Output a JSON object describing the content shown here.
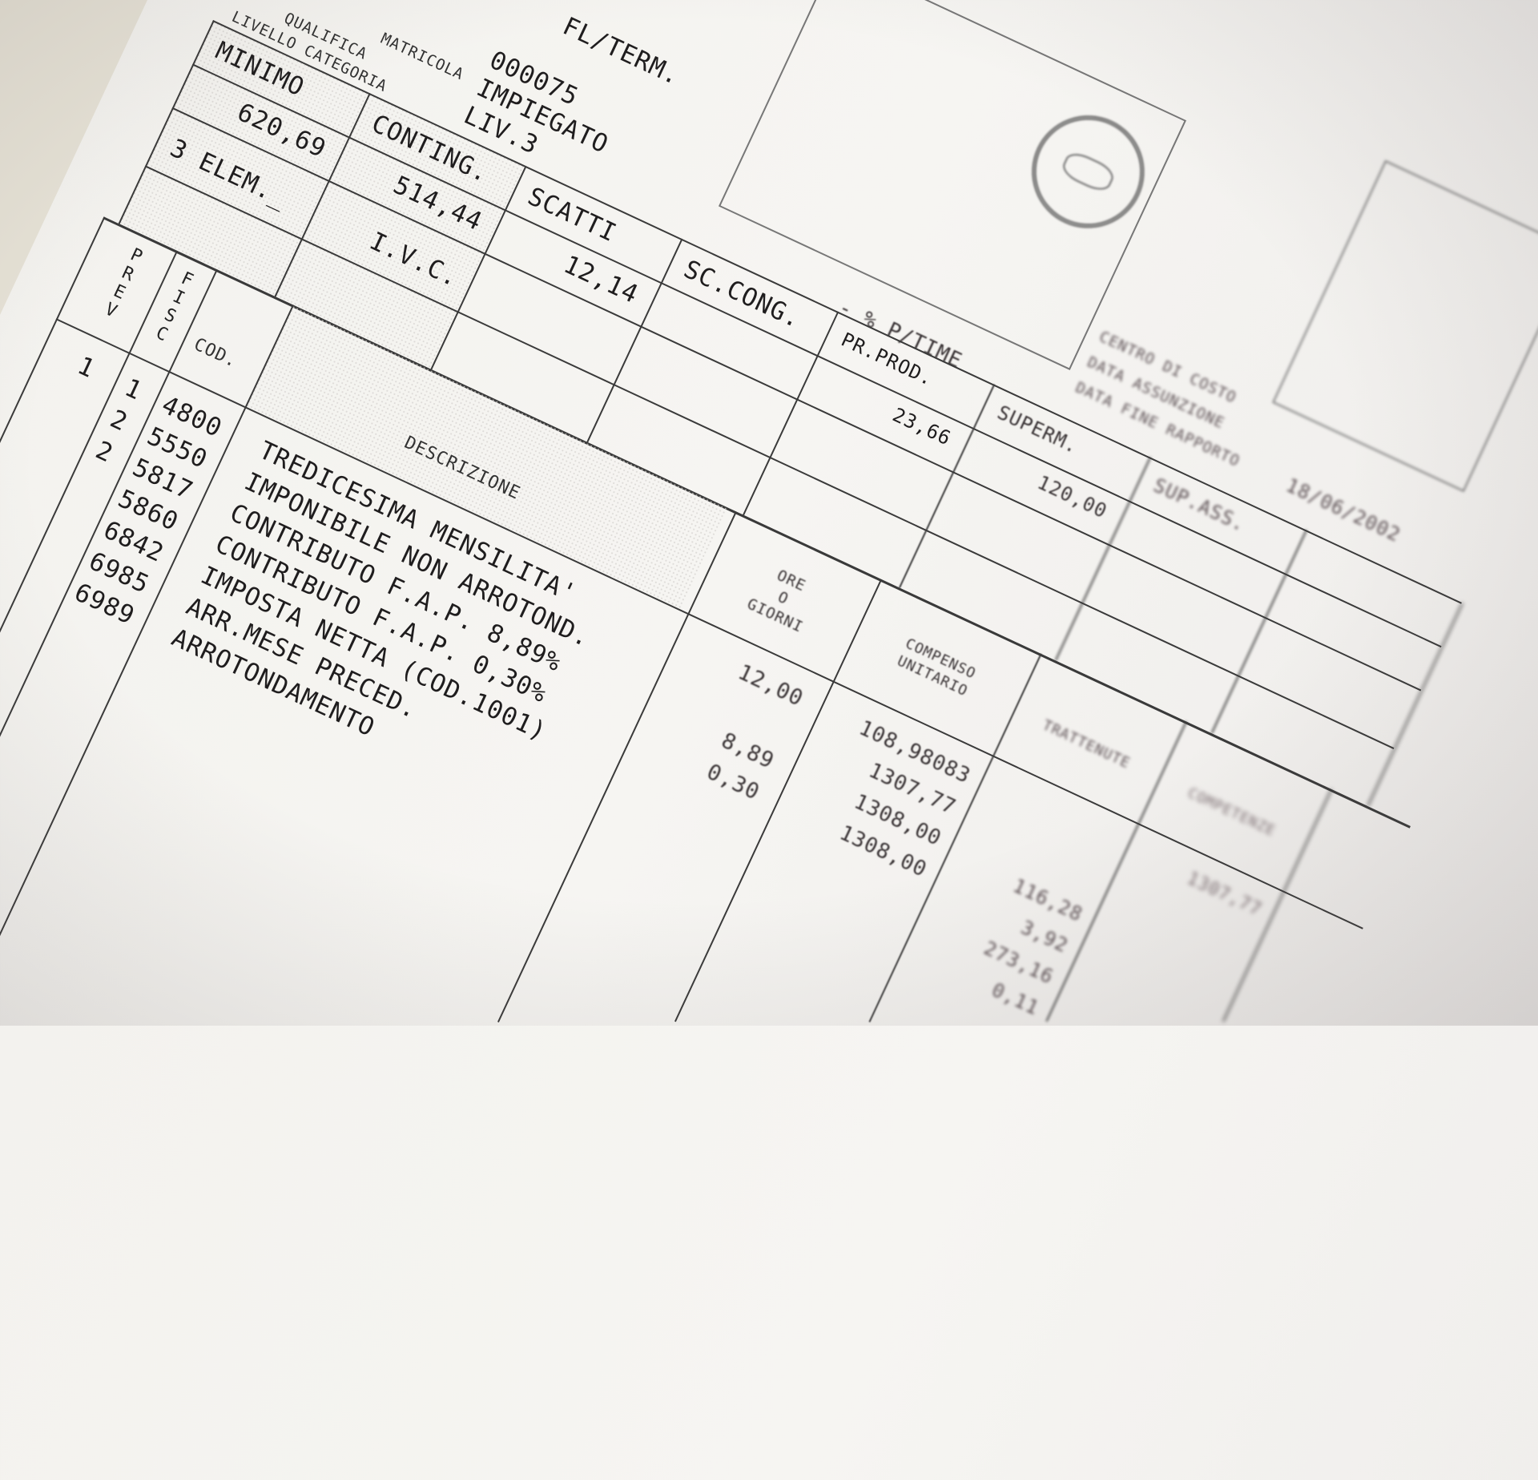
{
  "header": {
    "labels": [
      "MATRICOLA",
      "QUALIFICA",
      "LIVELLO CATEGORIA"
    ],
    "contract_type": "FL/TERM.",
    "matricola": "000075",
    "qualifica": "IMPIEGATO",
    "livello": "LIV.3",
    "part_time": "- % P/TIME",
    "info_labels": [
      "CENTRO DI COSTO",
      "DATA ASSUNZIONE",
      "DATA FINE RAPPORTO"
    ],
    "info_date": "18/06/2002"
  },
  "elements": {
    "row1": [
      {
        "label": "MINIMO",
        "value": "620,69"
      },
      {
        "label": "CONTING.",
        "value": "514,44"
      },
      {
        "label": "SCATTI",
        "value": "12,14"
      },
      {
        "label": "SC.CONG.",
        "value": ""
      },
      {
        "label": "PR.PROD.",
        "value": "23,66"
      },
      {
        "label": "SUPERM.",
        "value": "120,00"
      },
      {
        "label": "SUP.ASS.",
        "value": ""
      }
    ],
    "row2": [
      {
        "label": "3 ELEM._",
        "value": ""
      },
      {
        "label": "I.V.C.",
        "value": ""
      }
    ]
  },
  "table": {
    "headers": {
      "prev": "PREV",
      "fisc": "FISC",
      "cod": "COD.",
      "descrizione": "DESCRIZIONE",
      "ore": [
        "ORE",
        "O",
        "GIORNI"
      ],
      "compenso": [
        "COMPENSO",
        "UNITARIO"
      ],
      "trattenute": "TRATTENUTE",
      "competenze": "COMPETENZE"
    },
    "rows": [
      {
        "prev": "1",
        "fisc": "1",
        "cod": "4800",
        "desc": "TREDICESIMA MENSILITA'",
        "ore": "12,00",
        "compenso": "108,98083",
        "trattenute": "",
        "competenze": "1307,77"
      },
      {
        "prev": "",
        "fisc": "2",
        "cod": "5550",
        "desc": "IMPONIBILE NON ARROTOND.",
        "ore": "",
        "compenso": "1307,77",
        "trattenute": "",
        "competenze": ""
      },
      {
        "prev": "",
        "fisc": "2",
        "cod": "5817",
        "desc": "CONTRIBUTO F.A.P. 8,89%",
        "ore": "8,89",
        "compenso": "1308,00",
        "trattenute": "116,28",
        "competenze": ""
      },
      {
        "prev": "",
        "fisc": "",
        "cod": "5860",
        "desc": "CONTRIBUTO F.A.P. 0,30%",
        "ore": "0,30",
        "compenso": "1308,00",
        "trattenute": "3,92",
        "competenze": ""
      },
      {
        "prev": "",
        "fisc": "",
        "cod": "6842",
        "desc": "IMPOSTA NETTA (COD.1001)",
        "ore": "",
        "compenso": "",
        "trattenute": "273,16",
        "competenze": ""
      },
      {
        "prev": "",
        "fisc": "",
        "cod": "6985",
        "desc": "ARR.MESE PRECED.",
        "ore": "",
        "compenso": "",
        "trattenute": "0,11",
        "competenze": ""
      },
      {
        "prev": "",
        "fisc": "",
        "cod": "6989",
        "desc": "ARROTONDAMENTO",
        "ore": "",
        "compenso": "",
        "trattenute": "",
        "competenze": ""
      }
    ]
  },
  "stamp_icon": "circular-seal-icon",
  "colors": {
    "ink": "#1f1d1e",
    "paper": "#f4f3ef",
    "background": "#e6e2d6"
  }
}
